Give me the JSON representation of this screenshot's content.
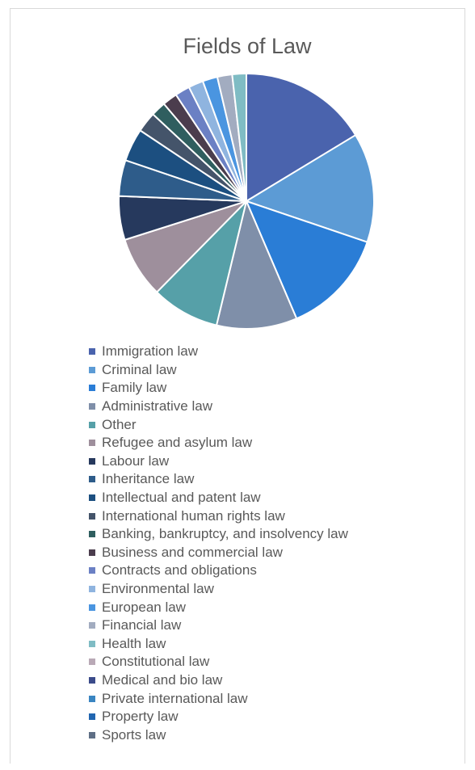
{
  "chart_data": {
    "type": "pie",
    "title": "Fields of Law",
    "legend_position": "bottom",
    "slices": [
      {
        "label": "Immigration law",
        "value": 16.5,
        "color": "#4a63ad"
      },
      {
        "label": "Criminal law",
        "value": 14.0,
        "color": "#5c9bd5"
      },
      {
        "label": "Family law",
        "value": 13.5,
        "color": "#2a7dd6"
      },
      {
        "label": "Administrative law",
        "value": 10.3,
        "color": "#7f8fa9"
      },
      {
        "label": "Other",
        "value": 8.7,
        "color": "#56a0a8"
      },
      {
        "label": "Refugee and asylum law",
        "value": 7.8,
        "color": "#9e8f9c"
      },
      {
        "label": "Labour law",
        "value": 5.6,
        "color": "#26395d"
      },
      {
        "label": "Inheritance law",
        "value": 4.6,
        "color": "#2e5c8a"
      },
      {
        "label": "Intellectual and patent law",
        "value": 4.2,
        "color": "#1c4f80"
      },
      {
        "label": "International human rights law",
        "value": 2.6,
        "color": "#44546a"
      },
      {
        "label": "Banking, bankruptcy, and insolvency law",
        "value": 1.9,
        "color": "#2f5e5f"
      },
      {
        "label": "Business and commercial law",
        "value": 1.9,
        "color": "#4b3d4d"
      },
      {
        "label": "Contracts and obligations",
        "value": 1.9,
        "color": "#6b80c4"
      },
      {
        "label": "Environmental law",
        "value": 1.9,
        "color": "#8fb4df"
      },
      {
        "label": "European law",
        "value": 1.9,
        "color": "#4a95e0"
      },
      {
        "label": "Financial law",
        "value": 1.9,
        "color": "#a2acc0"
      },
      {
        "label": "Health law",
        "value": 1.8,
        "color": "#7fbcc4"
      },
      {
        "label": "Constitutional law",
        "value": 0,
        "color": "#b9a9b6"
      },
      {
        "label": "Medical and bio law",
        "value": 0,
        "color": "#3b4b8a"
      },
      {
        "label": "Private international law",
        "value": 0,
        "color": "#3a85c1"
      },
      {
        "label": "Property law",
        "value": 0,
        "color": "#2166b0"
      },
      {
        "label": "Sports law",
        "value": 0,
        "color": "#5f6f86"
      }
    ]
  }
}
